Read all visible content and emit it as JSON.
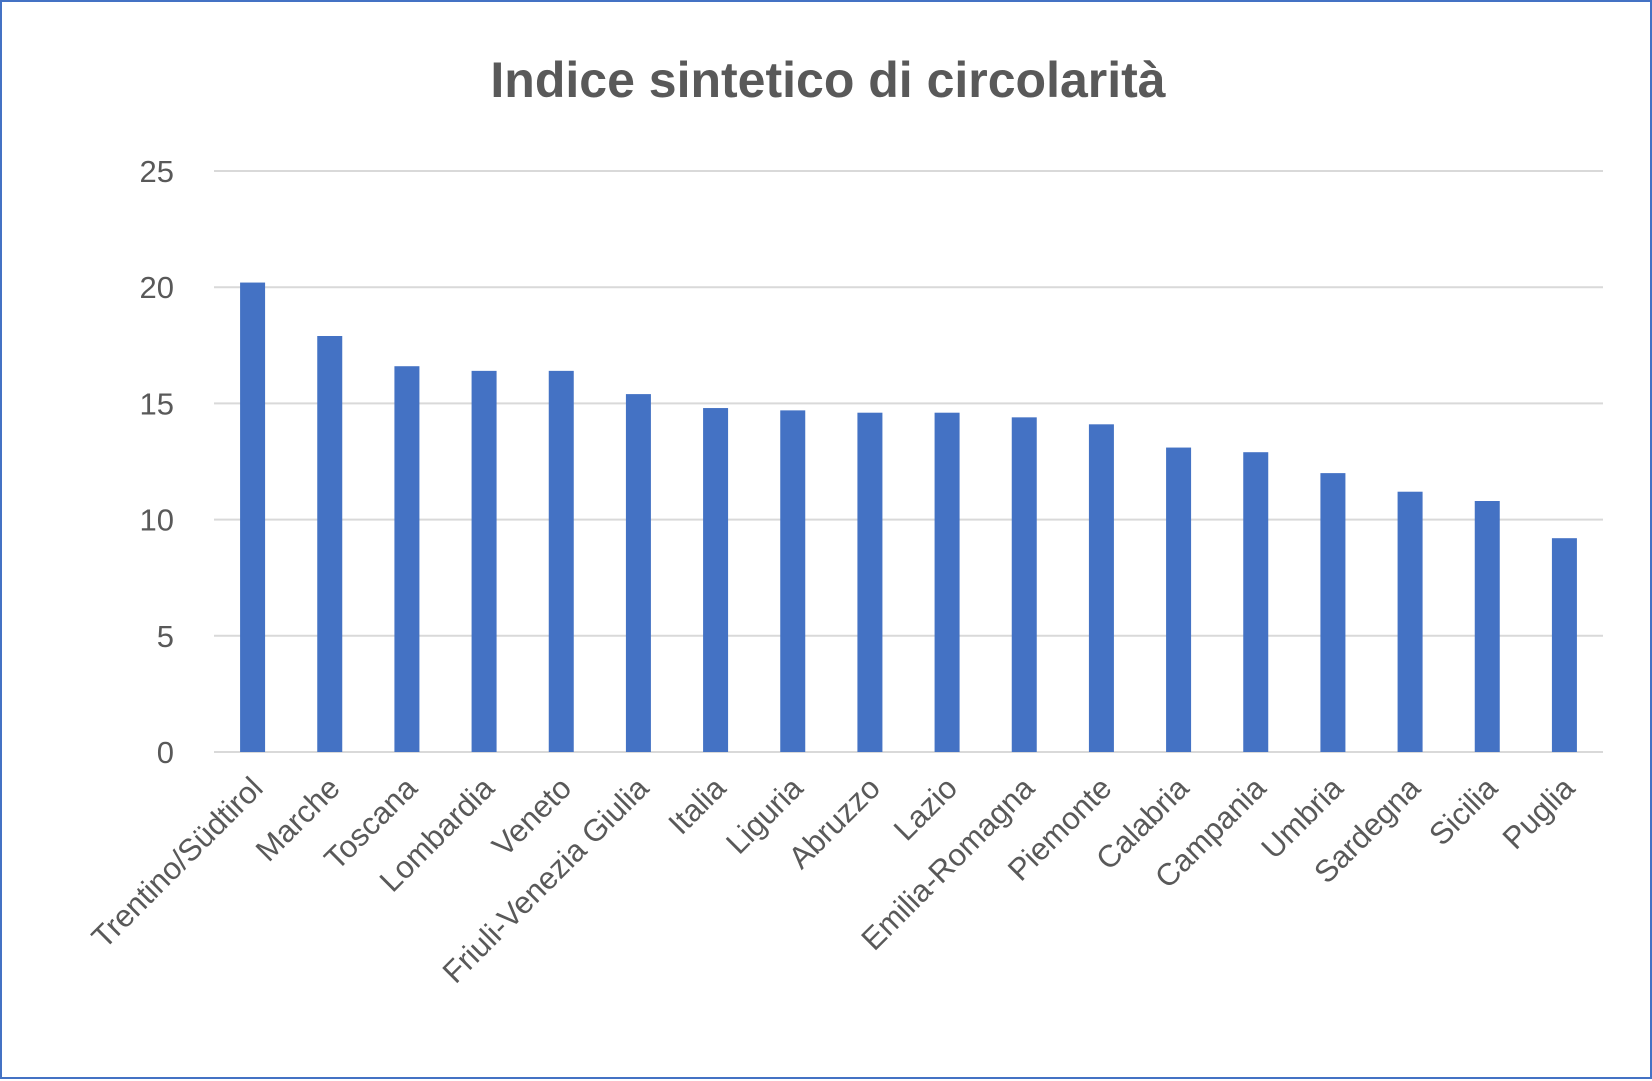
{
  "chart_data": {
    "type": "bar",
    "title": "Indice sintetico di circolarità",
    "xlabel": "",
    "ylabel": "",
    "ylim": [
      0,
      25
    ],
    "yticks": [
      0,
      5,
      10,
      15,
      20,
      25
    ],
    "grid": true,
    "legend": "none",
    "bar_color": "#4472c4",
    "categories": [
      "Trentino/Südtirol",
      "Marche",
      "Toscana",
      "Lombardia",
      "Veneto",
      "Friuli-Venezia Giulia",
      "Italia",
      "Liguria",
      "Abruzzo",
      "Lazio",
      "Emilia-Romagna",
      "Piemonte",
      "Calabria",
      "Campania",
      "Umbria",
      "Sardegna",
      "Sicilia",
      "Puglia"
    ],
    "values": [
      20.2,
      17.9,
      16.6,
      16.4,
      16.4,
      15.4,
      14.8,
      14.7,
      14.6,
      14.6,
      14.4,
      14.1,
      13.1,
      12.9,
      12.0,
      11.2,
      10.8,
      9.2
    ]
  }
}
